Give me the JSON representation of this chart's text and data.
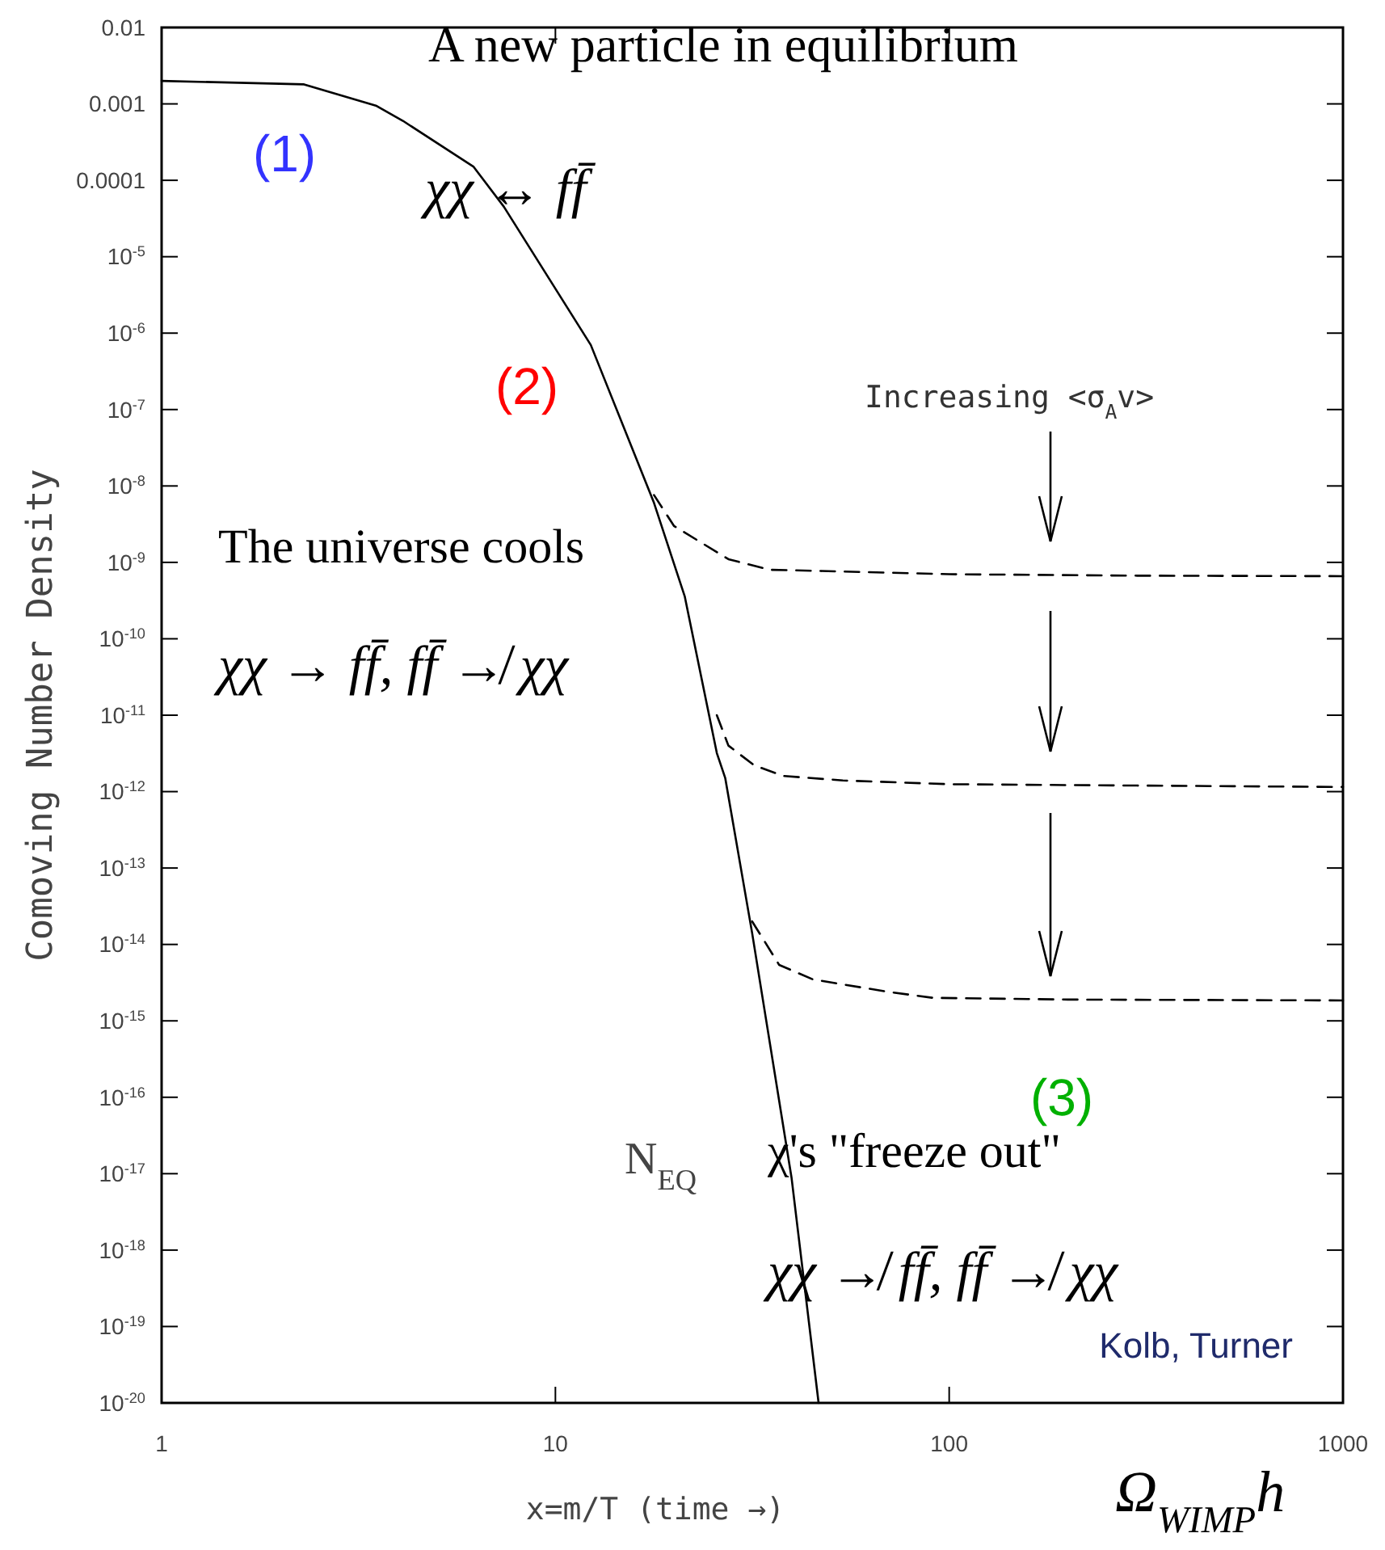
{
  "chart_data": {
    "type": "line",
    "xlabel": "x=m/T (time →)",
    "ylabel": "Comoving Number Density",
    "log": "xy",
    "xlim": [
      1,
      1000
    ],
    "ylim": [
      1e-20,
      0.01
    ],
    "xticks": [
      1,
      10,
      100,
      1000
    ],
    "yticks": [
      0.01,
      0.001,
      0.0001,
      {
        "value": 1e-05,
        "label": "10$^{-5}$"
      },
      {
        "value": 1e-06,
        "label": "10$^{-6}$"
      },
      {
        "value": 1e-07,
        "label": "10$^{-7}$"
      },
      {
        "value": 1e-08,
        "label": "10$^{-8}$"
      },
      {
        "value": 1e-09,
        "label": "10$^{-9}$"
      },
      {
        "value": 1e-10,
        "label": "10$^{-10}$"
      },
      {
        "value": 1e-11,
        "label": "10$^{-11}$"
      },
      {
        "value": 1e-12,
        "label": "10$^{-12}$"
      },
      {
        "value": 1e-13,
        "label": "10$^{-13}$"
      },
      {
        "value": 1e-14,
        "label": "10$^{-14}$"
      },
      {
        "value": 1e-15,
        "label": "10$^{-15}$"
      },
      {
        "value": 1e-16,
        "label": "10$^{-16}$"
      },
      {
        "value": 1e-17,
        "label": "10$^{-17}$"
      },
      {
        "value": 1e-18,
        "label": "10$^{-18}$"
      },
      {
        "value": 1e-19,
        "label": "10$^{-19}$"
      },
      {
        "value": 1e-20,
        "label": "10$^{-20}$"
      }
    ],
    "grid": false,
    "marker": "none",
    "series": [
      {
        "name": "N$_{EQ}$",
        "color": "#000000",
        "line_style": "solid",
        "x": [
          1,
          2.3,
          3.5,
          4.1,
          6.2,
          7.4,
          12.3,
          17.8,
          21.3,
          25.7,
          27,
          31.6,
          39.8,
          46.6
        ],
        "values": [
          0.002,
          0.0018,
          0.00095,
          0.0006,
          0.00015,
          4.5e-05,
          7e-07,
          6e-09,
          3.6e-10,
          3.2e-12,
          1.5e-12,
          1.4e-14,
          8.7e-18,
          1e-20
        ]
      },
      {
        "color": "#000000",
        "line_style": "dashed",
        "x": [
          17.8,
          20,
          27.5,
          35,
          53.7,
          100,
          300,
          1000
        ],
        "values": [
          7.6e-09,
          3e-09,
          1.1e-09,
          8e-10,
          7.6e-10,
          7e-10,
          6.7e-10,
          6.6e-10
        ]
      },
      {
        "color": "#000000",
        "line_style": "dashed",
        "x": [
          25.7,
          27.5,
          32,
          38,
          53.7,
          100,
          300,
          1000
        ],
        "values": [
          1e-11,
          4e-12,
          2.2e-12,
          1.6e-12,
          1.4e-12,
          1.25e-12,
          1.2e-12,
          1.15e-12
        ]
      },
      {
        "color": "#000000",
        "line_style": "dashed",
        "x": [
          31.6,
          37,
          45,
          53.7,
          70,
          91,
          200,
          1000
        ],
        "values": [
          2e-14,
          5.4e-15,
          3.5e-15,
          3e-15,
          2.4e-15,
          2e-15,
          1.9e-15,
          1.85e-15
        ]
      }
    ],
    "annotations": [
      "A new particle in equilibrium",
      "χχ ↔ ff̄",
      "(1)",
      "(2)",
      "The universe cools",
      "χχ → ff̄, ff̄ ↛ χχ",
      "Increasing <σ$_{A}$v>",
      "(3)",
      "χ's \"freeze out\"",
      "χχ ↛ ff̄, ff̄ ↛ χχ",
      "Kolb, Turner",
      "Ω$_{WIMP}$h"
    ]
  }
}
